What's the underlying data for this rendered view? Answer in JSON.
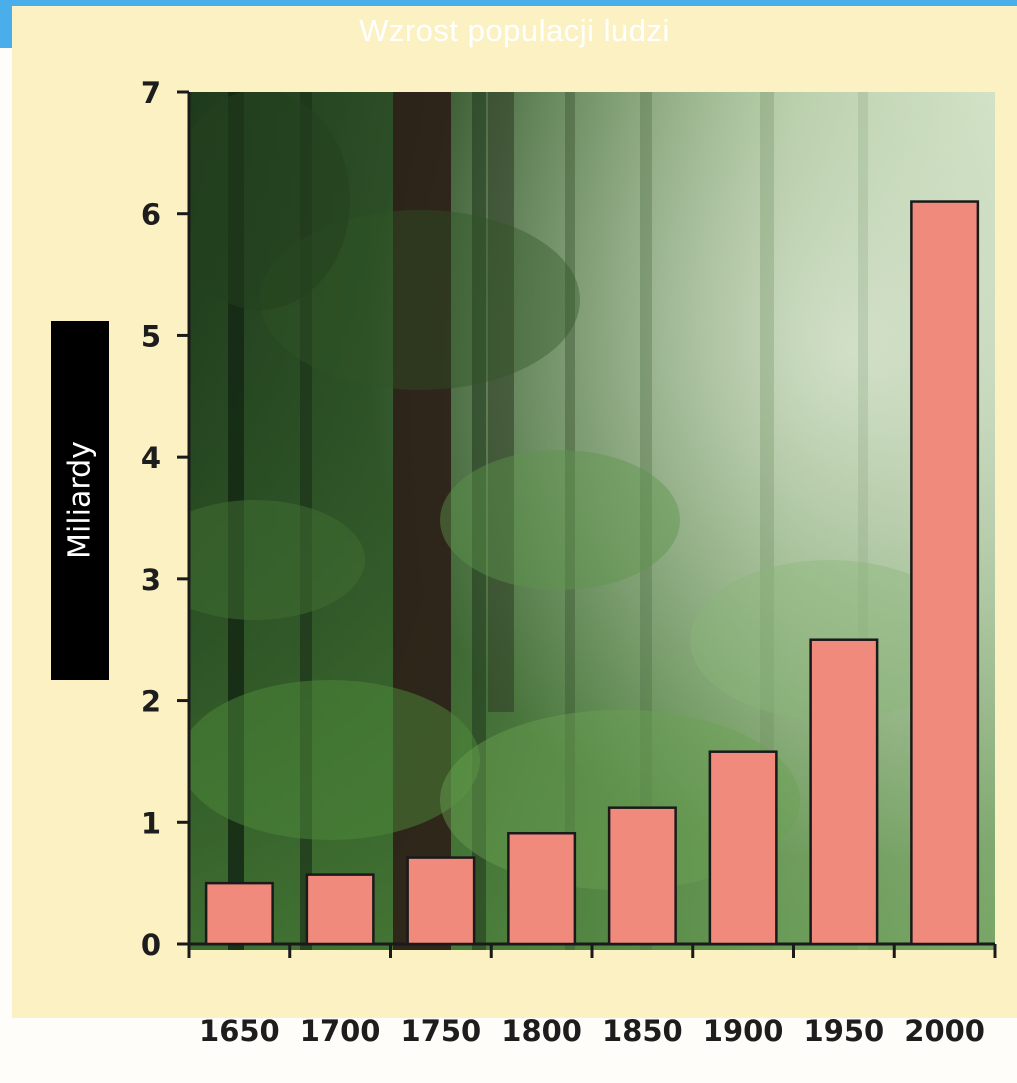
{
  "chart_data": {
    "type": "bar",
    "title": "Wzrost populacji ludzi",
    "ylabel": "Miliardy",
    "xlabel": "",
    "categories": [
      "1650",
      "1700",
      "1750",
      "1800",
      "1850",
      "1900",
      "1950",
      "2000"
    ],
    "values": [
      0.5,
      0.57,
      0.71,
      0.91,
      1.12,
      1.58,
      2.5,
      6.1
    ],
    "ylim": [
      0,
      7
    ],
    "yticks": [
      0,
      1,
      2,
      3,
      4,
      5,
      6,
      7
    ],
    "grid": false,
    "legend": "none",
    "bar_color": "#f08a7c",
    "bar_outline": "#1a1a1a",
    "background": "forest photograph"
  }
}
